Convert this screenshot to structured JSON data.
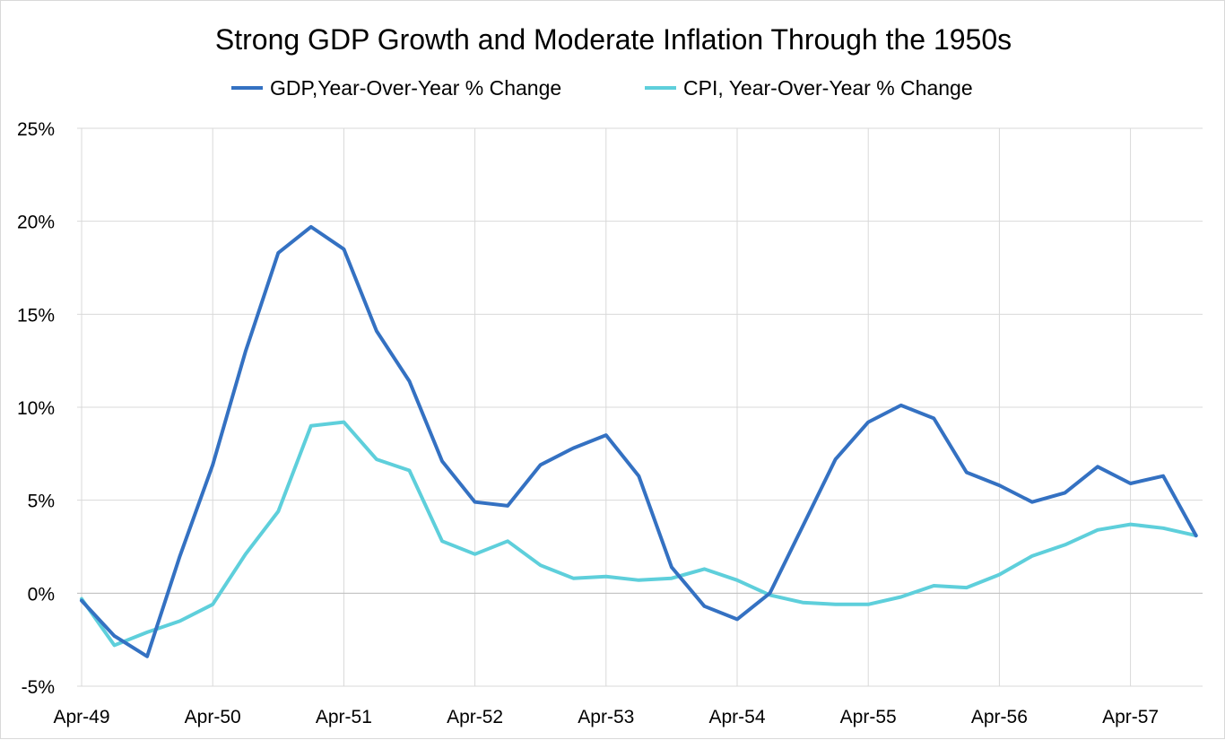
{
  "chart_data": {
    "type": "line",
    "title": "Strong GDP Growth and Moderate Inflation Through the 1950s",
    "xlabel": "",
    "ylabel": "",
    "ylim": [
      -5,
      25
    ],
    "y_ticks": [
      25,
      20,
      15,
      10,
      5,
      0,
      -5
    ],
    "y_tick_labels": [
      "25%",
      "20%",
      "15%",
      "10%",
      "5%",
      "0%",
      "-5%"
    ],
    "x_tick_labels": [
      "Apr-49",
      "Apr-50",
      "Apr-51",
      "Apr-52",
      "Apr-53",
      "Apr-54",
      "Apr-55",
      "Apr-56",
      "Apr-57"
    ],
    "x_tick_quarter_index": [
      0,
      4,
      8,
      12,
      16,
      20,
      24,
      28,
      32
    ],
    "x_quarters_total": 35,
    "legend_position": "top",
    "grid": {
      "vertical": true,
      "horizontal": true
    },
    "series": [
      {
        "name": "GDP,Year-Over-Year % Change",
        "color": "#3471c2",
        "values": [
          -0.4,
          -2.3,
          -3.4,
          2.0,
          6.9,
          13.0,
          18.3,
          19.7,
          18.5,
          14.1,
          11.4,
          7.1,
          4.9,
          4.7,
          6.9,
          7.8,
          8.5,
          6.3,
          1.4,
          -0.7,
          -1.4,
          0.0,
          3.6,
          7.2,
          9.2,
          10.1,
          9.4,
          6.5,
          5.8,
          4.9,
          5.4,
          6.8,
          5.9,
          6.3,
          3.1
        ]
      },
      {
        "name": "CPI, Year-Over-Year % Change",
        "color": "#5ecfdb",
        "values": [
          -0.3,
          -2.8,
          -2.1,
          -1.5,
          -0.6,
          2.1,
          4.4,
          9.0,
          9.2,
          7.2,
          6.6,
          2.8,
          2.1,
          2.8,
          1.5,
          0.8,
          0.9,
          0.7,
          0.8,
          1.3,
          0.7,
          -0.1,
          -0.5,
          -0.6,
          -0.6,
          -0.2,
          0.4,
          0.3,
          1.0,
          2.0,
          2.6,
          3.4,
          3.7,
          3.5,
          3.1
        ]
      }
    ]
  }
}
